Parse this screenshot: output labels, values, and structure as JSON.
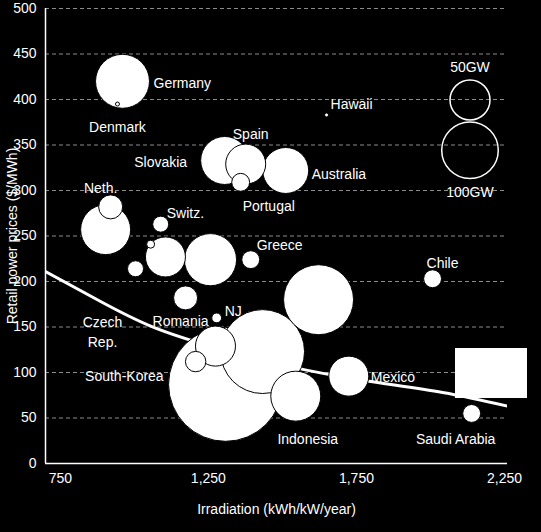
{
  "chart_data": {
    "type": "scatter",
    "x_label": "Irradiation (kWh/kW/year)",
    "y_label": "Retail power prices ($/MWh)",
    "color": "#ffffff",
    "grid": true,
    "xlim": [
      700,
      2260
    ],
    "xticks": [
      750,
      {
        "value": 1250,
        "label": "1,250"
      },
      {
        "value": 1750,
        "label": "1,750"
      },
      {
        "value": 2250,
        "label": "2,250"
      }
    ],
    "ylim": [
      0,
      500
    ],
    "yticks": [
      0,
      50,
      100,
      150,
      200,
      250,
      300,
      350,
      400,
      450,
      500
    ],
    "size_legend": [
      {
        "value": 50,
        "label": "50GW"
      },
      {
        "value": 100,
        "label": "100GW"
      }
    ],
    "points": [
      {
        "name": "Germany",
        "x": 960,
        "y": 420,
        "size": 91
      },
      {
        "name": "Denmark",
        "x": 943,
        "y": 395,
        "size": 0.5
      },
      {
        "name": "Hawaii",
        "x": 1649,
        "y": 383,
        "size": 0.5
      },
      {
        "name": "Spain",
        "x": 1305,
        "y": 333,
        "size": 72
      },
      {
        "name": null,
        "x": 1376,
        "y": 329,
        "size": 50
      },
      {
        "name": "Portugal",
        "x": 1359,
        "y": 309,
        "size": 10
      },
      {
        "name": "Australia",
        "x": 1511,
        "y": 322,
        "size": 66
      },
      {
        "name": "Neth.",
        "x": 920,
        "y": 282,
        "size": 18
      },
      {
        "name": null,
        "x": 903,
        "y": 257,
        "size": 78
      },
      {
        "name": "Slovakia",
        "x": 1055,
        "y": 241,
        "size": 2
      },
      {
        "name": "Switz.",
        "x": 1089,
        "y": 263,
        "size": 8
      },
      {
        "name": "Czech\nRep.",
        "x": 1004,
        "y": 214,
        "size": 8
      },
      {
        "name": null,
        "x": 1105,
        "y": 227,
        "size": 50
      },
      {
        "name": null,
        "x": 1257,
        "y": 224,
        "size": 85
      },
      {
        "name": "Greece",
        "x": 1393,
        "y": 224,
        "size": 10
      },
      {
        "name": "Romania",
        "x": 1173,
        "y": 182,
        "size": 18
      },
      {
        "name": "NJ",
        "x": 1278,
        "y": 160,
        "size": 3
      },
      {
        "name": null,
        "x": 1308,
        "y": 87,
        "size": 406
      },
      {
        "name": null,
        "x": 1433,
        "y": 123,
        "size": 220
      },
      {
        "name": null,
        "x": 1622,
        "y": 180,
        "size": 153
      },
      {
        "name": null,
        "x": 1274,
        "y": 129,
        "size": 50
      },
      {
        "name": "South-Korea",
        "x": 1207,
        "y": 112,
        "size": 13
      },
      {
        "name": "Mexico",
        "x": 1724,
        "y": 96,
        "size": 50
      },
      {
        "name": "Indonesia",
        "x": 1545,
        "y": 74,
        "size": 78
      },
      {
        "name": "Chile",
        "x": 2007,
        "y": 203,
        "size": 10
      },
      {
        "name": "Saudi Arabia",
        "x": 2139,
        "y": 55,
        "size": 10
      }
    ],
    "curve": {
      "x": [
        700,
        886,
        1055,
        1257,
        1518,
        1781,
        2041,
        2260
      ],
      "y": [
        211,
        178,
        151,
        129,
        107,
        91,
        78,
        63
      ]
    }
  }
}
